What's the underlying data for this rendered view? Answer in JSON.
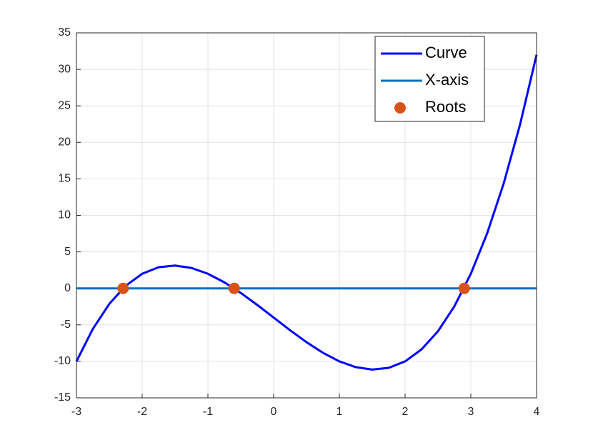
{
  "chart_data": {
    "type": "line",
    "xlim": [
      -3,
      4
    ],
    "ylim": [
      -15,
      35
    ],
    "xticks": [
      -3,
      -2,
      -1,
      0,
      1,
      2,
      3,
      4
    ],
    "yticks": [
      -15,
      -10,
      -5,
      0,
      5,
      10,
      15,
      20,
      25,
      30,
      35
    ],
    "grid": true,
    "legend": "northeast",
    "series": [
      {
        "name": "Curve",
        "color": "#0000ff",
        "style": "line",
        "x": [
          -3,
          -2.75,
          -2.5,
          -2.25,
          -2,
          -1.75,
          -1.5,
          -1.25,
          -1,
          -0.75,
          -0.5,
          -0.25,
          0,
          0.25,
          0.5,
          0.75,
          1,
          1.25,
          1.5,
          1.75,
          2,
          2.25,
          2.5,
          2.75,
          3,
          3.25,
          3.5,
          3.75,
          4
        ],
        "values": [
          -10,
          -5.547,
          -2.125,
          0.359,
          2,
          2.891,
          3.125,
          2.797,
          2,
          0.828,
          -0.625,
          -2.266,
          -4,
          -5.734,
          -7.375,
          -8.828,
          -10,
          -10.797,
          -11.125,
          -10.891,
          -10,
          -8.359,
          -5.875,
          -2.453,
          2,
          7.578,
          14.375,
          22.484,
          32
        ]
      },
      {
        "name": "X-axis",
        "color": "#0072bd",
        "style": "line",
        "x": [
          -3,
          4
        ],
        "values": [
          0,
          0
        ]
      },
      {
        "name": "Roots",
        "color": "#d95319",
        "style": "marker",
        "x": [
          -2.29,
          -0.6,
          2.9
        ],
        "values": [
          0,
          0,
          0
        ]
      }
    ]
  }
}
